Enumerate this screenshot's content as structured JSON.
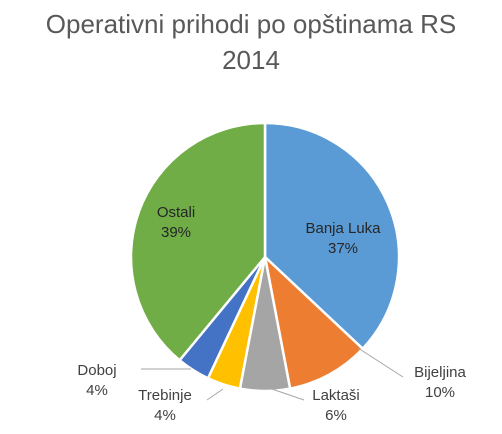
{
  "chart_data": {
    "type": "pie",
    "title_line1": "Operativni prihodi po opštinama RS",
    "title_line2": "2014",
    "slices": [
      {
        "label": "Banja Luka",
        "pct_text": "37%",
        "value": 37,
        "color": "#5b9bd5"
      },
      {
        "label": "Bijeljina",
        "pct_text": "10%",
        "value": 10,
        "color": "#ed7d31"
      },
      {
        "label": "Laktaši",
        "pct_text": "6%",
        "value": 6,
        "color": "#a5a5a5"
      },
      {
        "label": "Trebinje",
        "pct_text": "4%",
        "value": 4,
        "color": "#ffc000"
      },
      {
        "label": "Doboj",
        "pct_text": "4%",
        "value": 4,
        "color": "#4472c4"
      },
      {
        "label": "Ostali",
        "pct_text": "39%",
        "value": 39,
        "color": "#70ad47"
      }
    ]
  }
}
